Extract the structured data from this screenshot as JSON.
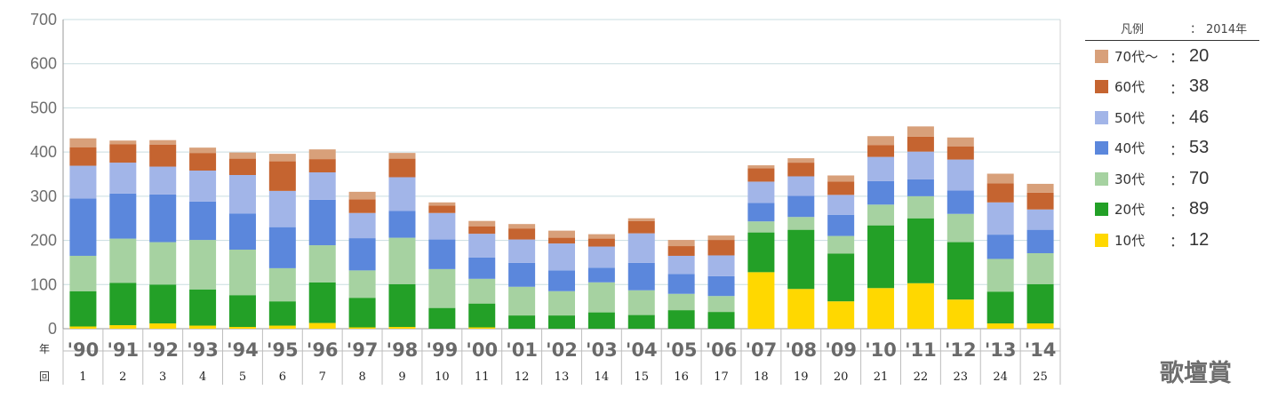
{
  "chart_data": {
    "type": "bar",
    "stacked": true,
    "ylim": [
      0,
      700
    ],
    "yticks": [
      0,
      100,
      200,
      300,
      400,
      500,
      600,
      700
    ],
    "grid": true,
    "row_headers": {
      "year": "年",
      "round": "回"
    },
    "categories": [
      "'90",
      "'91",
      "'92",
      "'93",
      "'94",
      "'95",
      "'96",
      "'97",
      "'98",
      "'99",
      "'00",
      "'01",
      "'02",
      "'03",
      "'04",
      "'05",
      "'06",
      "'07",
      "'08",
      "'09",
      "'10",
      "'11",
      "'12",
      "'13",
      "'14"
    ],
    "rounds": [
      "1",
      "2",
      "3",
      "4",
      "5",
      "6",
      "7",
      "8",
      "9",
      "10",
      "11",
      "12",
      "13",
      "14",
      "15",
      "16",
      "17",
      "18",
      "19",
      "20",
      "21",
      "22",
      "23",
      "24",
      "25"
    ],
    "series": [
      {
        "name": "10代",
        "color": "#ffd800",
        "values": [
          5,
          8,
          12,
          7,
          4,
          7,
          13,
          3,
          4,
          0,
          3,
          0,
          0,
          0,
          0,
          0,
          0,
          128,
          90,
          62,
          92,
          103,
          66,
          12,
          12
        ]
      },
      {
        "name": "20代",
        "color": "#23a027",
        "values": [
          80,
          96,
          88,
          82,
          72,
          55,
          92,
          67,
          97,
          47,
          54,
          30,
          30,
          37,
          31,
          42,
          38,
          90,
          134,
          108,
          142,
          147,
          130,
          72,
          89
        ]
      },
      {
        "name": "30代",
        "color": "#a6d2a1",
        "values": [
          80,
          100,
          96,
          112,
          103,
          75,
          84,
          62,
          105,
          88,
          56,
          65,
          55,
          68,
          56,
          37,
          36,
          25,
          29,
          40,
          47,
          50,
          64,
          74,
          70
        ]
      },
      {
        "name": "40代",
        "color": "#5b87dc",
        "values": [
          130,
          102,
          108,
          87,
          82,
          93,
          103,
          73,
          61,
          67,
          48,
          54,
          47,
          33,
          62,
          45,
          45,
          42,
          48,
          48,
          53,
          38,
          53,
          55,
          53
        ]
      },
      {
        "name": "50代",
        "color": "#a2b5e8",
        "values": [
          74,
          70,
          63,
          70,
          87,
          82,
          62,
          57,
          76,
          60,
          54,
          53,
          61,
          48,
          67,
          41,
          47,
          48,
          44,
          45,
          55,
          63,
          70,
          73,
          46
        ]
      },
      {
        "name": "60代",
        "color": "#c56430",
        "values": [
          42,
          42,
          50,
          40,
          37,
          67,
          30,
          31,
          42,
          17,
          17,
          25,
          13,
          18,
          28,
          22,
          35,
          30,
          31,
          30,
          27,
          34,
          30,
          43,
          38
        ]
      },
      {
        "name": "70代～",
        "color": "#d8a07a",
        "values": [
          20,
          8,
          10,
          12,
          14,
          17,
          22,
          17,
          13,
          7,
          12,
          10,
          16,
          10,
          6,
          14,
          10,
          7,
          10,
          14,
          20,
          23,
          20,
          22,
          20
        ]
      }
    ]
  },
  "legend": {
    "title": "凡例",
    "colon": "：",
    "year": "2014年",
    "items": [
      {
        "name": "70代～",
        "color": "#d8a07a",
        "value": "20"
      },
      {
        "name": "60代",
        "color": "#c56430",
        "value": "38"
      },
      {
        "name": "50代",
        "color": "#a2b5e8",
        "value": "46"
      },
      {
        "name": "40代",
        "color": "#5b87dc",
        "value": "53"
      },
      {
        "name": "30代",
        "color": "#a6d2a1",
        "value": "70"
      },
      {
        "name": "20代",
        "color": "#23a027",
        "value": "89"
      },
      {
        "name": "10代",
        "color": "#ffd800",
        "value": "12"
      }
    ]
  },
  "award_label": "歌壇賞"
}
